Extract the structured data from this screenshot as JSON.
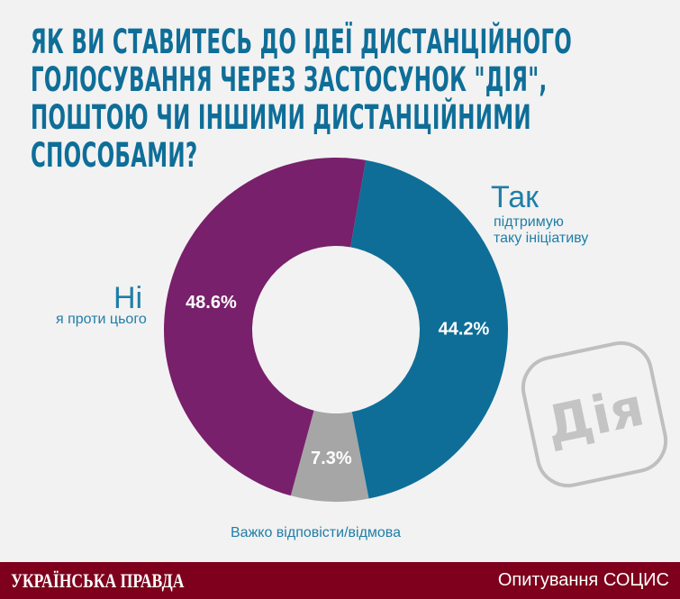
{
  "chart_data": {
    "type": "pie",
    "title": "ЯК ВИ СТАВИТЕСЬ ДО ІДЕЇ ДИСТАНЦІЙНОГО ГОЛОСУВАННЯ ЧЕРЕЗ ЗАСТОСУНОК \"ДІЯ\", ПОШТОЮ ЧИ ІНШИМИ ДИСТАНЦІЙНИМИ СПОСОБАМИ?",
    "donut": true,
    "slices": [
      {
        "name": "Так",
        "sub": "підтримую таку ініціативу",
        "value": 44.2,
        "label": "44.2%",
        "color": "#0e6e98"
      },
      {
        "name": "",
        "sub": "Важко відповісти/відмова",
        "value": 7.3,
        "label": "7.3%",
        "color": "#a6a6a6"
      },
      {
        "name": "Ні",
        "sub": "я проти цього",
        "value": 48.6,
        "label": "48.6%",
        "color": "#78206b"
      }
    ]
  },
  "labels": {
    "yes": "Так",
    "yes_sub1": "підтримую",
    "yes_sub2": "таку ініціативу",
    "no": "Ні",
    "no_sub": "я проти цього",
    "hard": "Важко відповісти/відмова"
  },
  "logo": "Дія",
  "footer": {
    "brand": "УКРАЇНСЬКА ПРАВДА",
    "source": "Опитування СОЦИС"
  }
}
